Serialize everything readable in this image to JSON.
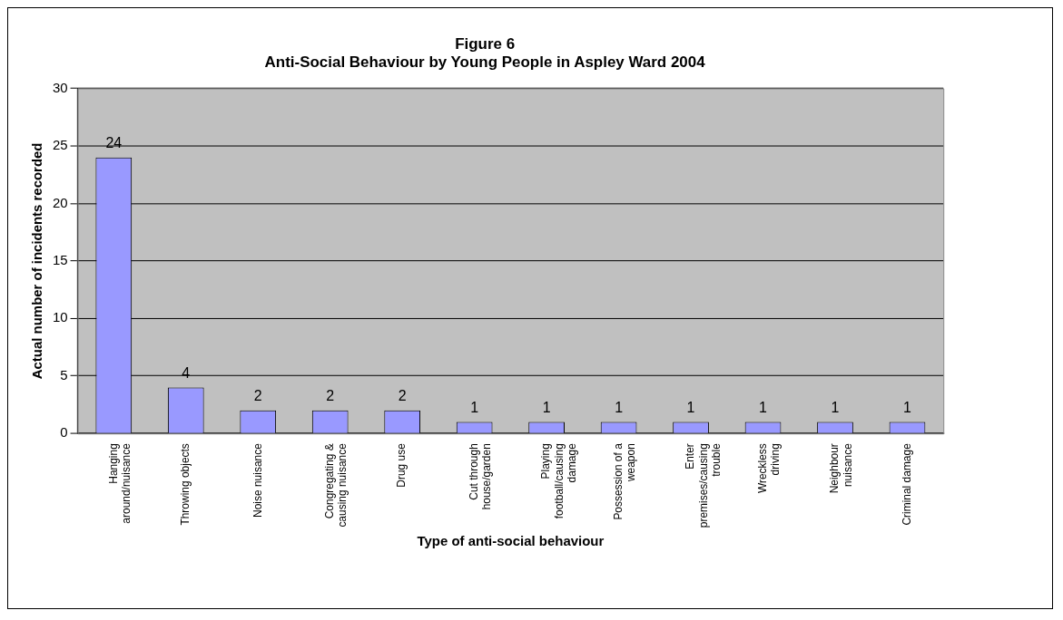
{
  "chart_data": {
    "type": "bar",
    "title": "Figure 6",
    "subtitle": "Anti-Social Behaviour by Young People in Aspley Ward 2004",
    "xlabel": "Type of anti-social behaviour",
    "ylabel": "Actual number of incidents recorded",
    "categories": [
      "Hanging around/nuisance",
      "Throwing objects",
      "Noise nuisance",
      "Congregating & causing nuisance",
      "Drug use",
      "Cut through house/garden",
      "Playing football/causing damage",
      "Possession of a weapon",
      "Enter premises/causing trouble",
      "Wreckless driving",
      "Neighbour nuisance",
      "Criminal damage"
    ],
    "values": [
      24,
      4,
      2,
      2,
      2,
      1,
      1,
      1,
      1,
      1,
      1,
      1
    ],
    "color": "#9999ff",
    "ylim": [
      0,
      30
    ],
    "yticks": [
      0,
      5,
      10,
      15,
      20,
      25,
      30
    ],
    "grid": "y",
    "legend": false,
    "data_labels": true
  }
}
